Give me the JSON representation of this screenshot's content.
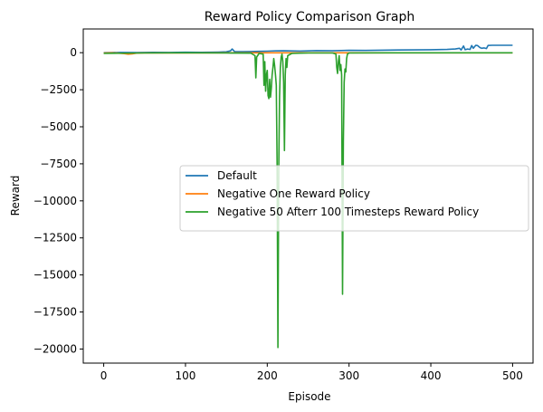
{
  "chart_data": {
    "type": "line",
    "title": "Reward Policy Comparison Graph",
    "xlabel": "Episode",
    "ylabel": "Reward",
    "xlim": [
      -25,
      525
    ],
    "ylim": [
      -20950,
      1600
    ],
    "xticks": [
      0,
      100,
      200,
      300,
      400,
      500
    ],
    "yticks": [
      0,
      -2500,
      -5000,
      -7500,
      -10000,
      -12500,
      -15000,
      -17500,
      -20000
    ],
    "grid": false,
    "legend_position": "center-right",
    "series": [
      {
        "name": "Default",
        "color": "#1f77b4",
        "points": [
          [
            0,
            0
          ],
          [
            20,
            20
          ],
          [
            40,
            10
          ],
          [
            60,
            25
          ],
          [
            80,
            20
          ],
          [
            100,
            30
          ],
          [
            120,
            25
          ],
          [
            140,
            40
          ],
          [
            150,
            60
          ],
          [
            155,
            120
          ],
          [
            157,
            250
          ],
          [
            160,
            80
          ],
          [
            170,
            70
          ],
          [
            180,
            80
          ],
          [
            190,
            90
          ],
          [
            200,
            100
          ],
          [
            210,
            120
          ],
          [
            220,
            130
          ],
          [
            240,
            110
          ],
          [
            260,
            140
          ],
          [
            280,
            130
          ],
          [
            300,
            160
          ],
          [
            320,
            150
          ],
          [
            340,
            170
          ],
          [
            360,
            180
          ],
          [
            380,
            190
          ],
          [
            400,
            200
          ],
          [
            420,
            220
          ],
          [
            430,
            250
          ],
          [
            435,
            300
          ],
          [
            437,
            180
          ],
          [
            440,
            450
          ],
          [
            442,
            200
          ],
          [
            445,
            250
          ],
          [
            448,
            220
          ],
          [
            450,
            480
          ],
          [
            452,
            300
          ],
          [
            455,
            500
          ],
          [
            457,
            480
          ],
          [
            460,
            350
          ],
          [
            462,
            300
          ],
          [
            465,
            320
          ],
          [
            468,
            280
          ],
          [
            470,
            490
          ],
          [
            475,
            500
          ],
          [
            480,
            500
          ],
          [
            490,
            500
          ],
          [
            500,
            500
          ]
        ]
      },
      {
        "name": "Negative One Reward Policy",
        "color": "#ff7f0e",
        "points": [
          [
            0,
            -20
          ],
          [
            10,
            -10
          ],
          [
            20,
            -40
          ],
          [
            25,
            -60
          ],
          [
            30,
            -100
          ],
          [
            35,
            -80
          ],
          [
            40,
            -30
          ],
          [
            50,
            -20
          ],
          [
            100,
            -15
          ],
          [
            150,
            -10
          ],
          [
            200,
            -10
          ],
          [
            250,
            -10
          ],
          [
            300,
            -10
          ],
          [
            350,
            -10
          ],
          [
            400,
            -10
          ],
          [
            450,
            -10
          ],
          [
            500,
            -10
          ]
        ]
      },
      {
        "name": "Negative 50 Afterr 100 Timesteps Reward Policy",
        "color": "#2ca02c",
        "points": [
          [
            0,
            -50
          ],
          [
            50,
            -20
          ],
          [
            100,
            -10
          ],
          [
            150,
            -20
          ],
          [
            180,
            -30
          ],
          [
            185,
            -200
          ],
          [
            186,
            -1700
          ],
          [
            187,
            -300
          ],
          [
            190,
            -50
          ],
          [
            195,
            -100
          ],
          [
            196,
            -2200
          ],
          [
            197,
            -600
          ],
          [
            198,
            -2600
          ],
          [
            199,
            -1500
          ],
          [
            200,
            -1200
          ],
          [
            201,
            -2900
          ],
          [
            202,
            -3100
          ],
          [
            203,
            -1800
          ],
          [
            204,
            -3000
          ],
          [
            205,
            -2400
          ],
          [
            206,
            -1500
          ],
          [
            207,
            -1000
          ],
          [
            208,
            -400
          ],
          [
            209,
            -900
          ],
          [
            210,
            -1500
          ],
          [
            211,
            -2200
          ],
          [
            212,
            -7500
          ],
          [
            213,
            -19900
          ],
          [
            214,
            -8000
          ],
          [
            215,
            -3000
          ],
          [
            216,
            -1000
          ],
          [
            217,
            -300
          ],
          [
            218,
            -100
          ],
          [
            219,
            -600
          ],
          [
            220,
            -2000
          ],
          [
            221,
            -6600
          ],
          [
            222,
            -1500
          ],
          [
            223,
            -400
          ],
          [
            224,
            -1000
          ],
          [
            225,
            -200
          ],
          [
            230,
            -50
          ],
          [
            250,
            -20
          ],
          [
            270,
            -20
          ],
          [
            280,
            -20
          ],
          [
            284,
            -100
          ],
          [
            285,
            -1000
          ],
          [
            286,
            -1400
          ],
          [
            287,
            -600
          ],
          [
            288,
            -200
          ],
          [
            289,
            -1200
          ],
          [
            290,
            -800
          ],
          [
            291,
            -1500
          ],
          [
            292,
            -16300
          ],
          [
            293,
            -6000
          ],
          [
            294,
            -2000
          ],
          [
            295,
            -1100
          ],
          [
            296,
            -1300
          ],
          [
            297,
            -400
          ],
          [
            298,
            -100
          ],
          [
            300,
            -20
          ],
          [
            350,
            -10
          ],
          [
            400,
            -10
          ],
          [
            450,
            -10
          ],
          [
            500,
            -10
          ]
        ]
      }
    ]
  }
}
